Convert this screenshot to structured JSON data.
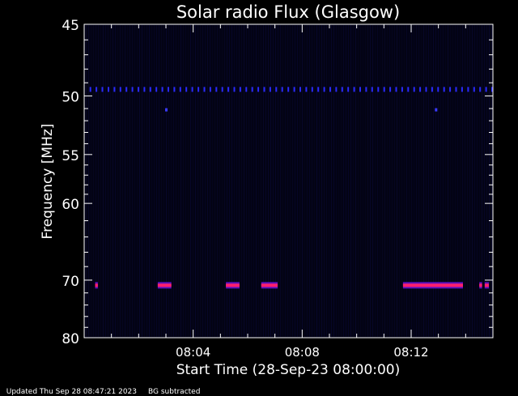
{
  "chart_data": {
    "type": "heatmap",
    "title": "Solar radio Flux (Glasgow)",
    "xlabel": "Start Time (28-Sep-23 08:00:00)",
    "ylabel": "Frequency [MHz]",
    "x_unit": "minutes",
    "xlim": [
      0,
      15
    ],
    "ylim": [
      45,
      80
    ],
    "y_scale": "reciprocal",
    "y_ticks": [
      45,
      50,
      55,
      60,
      70,
      80
    ],
    "x_ticks": [
      {
        "t": 4,
        "label": "08:04"
      },
      {
        "t": 8,
        "label": "08:08"
      },
      {
        "t": 12,
        "label": "08:12"
      }
    ],
    "background_color": "#030314",
    "features": [
      {
        "kind": "dotted_line",
        "freq": 49.5,
        "t_start": 0.2,
        "t_end": 15,
        "step": 0.22,
        "color": "#2a2aff"
      },
      {
        "kind": "burst",
        "freq": 70.8,
        "t_start": 0.4,
        "t_end": 0.5,
        "color": "#ff1e6e"
      },
      {
        "kind": "burst",
        "freq": 70.8,
        "t_start": 2.7,
        "t_end": 3.2,
        "color": "#ff1e6e"
      },
      {
        "kind": "burst",
        "freq": 70.8,
        "t_start": 5.2,
        "t_end": 5.7,
        "color": "#ff1e6e"
      },
      {
        "kind": "burst",
        "freq": 70.8,
        "t_start": 6.5,
        "t_end": 7.1,
        "color": "#ff1e6e"
      },
      {
        "kind": "burst",
        "freq": 70.8,
        "t_start": 11.7,
        "t_end": 13.9,
        "color": "#ff1e6e"
      },
      {
        "kind": "burst",
        "freq": 70.8,
        "t_start": 14.5,
        "t_end": 14.6,
        "color": "#ff1e6e"
      },
      {
        "kind": "burst",
        "freq": 70.8,
        "t_start": 14.7,
        "t_end": 14.85,
        "color": "#ff1e6e"
      },
      {
        "kind": "spot",
        "freq": 51.1,
        "t": 3.0,
        "color": "#3a3aff"
      },
      {
        "kind": "spot",
        "freq": 51.1,
        "t": 12.9,
        "color": "#3a3aff"
      }
    ]
  },
  "footer": {
    "updated": "Updated Thu Sep 28 08:47:21 2023",
    "bg": "BG subtracted"
  }
}
